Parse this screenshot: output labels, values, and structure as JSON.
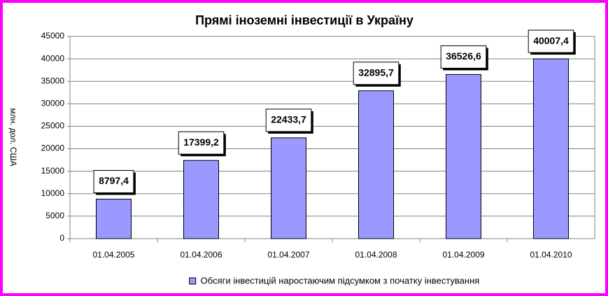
{
  "chart_data": {
    "type": "bar",
    "title": "Прямі іноземні інвестиції в Україну",
    "y_label": "млн. дол. США",
    "categories": [
      "01.04.2005",
      "01.04.2006",
      "01.04.2007",
      "01.04.2008",
      "01.04.2009",
      "01.04.2010"
    ],
    "series": [
      {
        "name": "Обсяги інвестицій наростаючим підсумком з початку інвестування",
        "color": "#9999ff",
        "values": [
          8797.4,
          17399.2,
          22433.7,
          32895.7,
          36526.6,
          40007.4
        ],
        "value_labels": [
          "8797,4",
          "17399,2",
          "22433,7",
          "32895,7",
          "36526,6",
          "40007,4"
        ]
      }
    ],
    "ylim": [
      0,
      45000
    ],
    "yticks": [
      0,
      5000,
      10000,
      15000,
      20000,
      25000,
      30000,
      35000,
      40000,
      45000
    ],
    "grid": true,
    "legend": "bottom"
  }
}
